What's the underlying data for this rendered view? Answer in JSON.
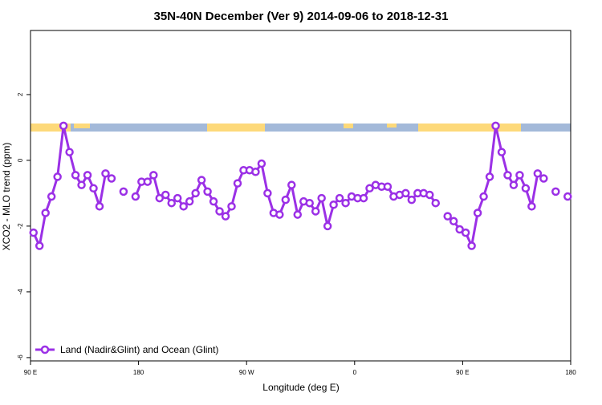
{
  "chart_data": {
    "type": "line",
    "title": "35N-40N December (Ver 9)   2014-09-06 to 2018-12-31",
    "x_label": "Longitude (deg E)",
    "y_label": "XCO2 - MLO trend (ppm)",
    "xlim": [
      90,
      540
    ],
    "ylim": [
      -6.1,
      3.95
    ],
    "xticks": [
      {
        "value": 90,
        "label": "90 E"
      },
      180,
      {
        "value": 270,
        "label": "90 W"
      },
      {
        "value": 360,
        "label": "0"
      },
      {
        "value": 450,
        "label": "90 E"
      },
      {
        "value": 540,
        "label": "180"
      }
    ],
    "yticks": [
      2,
      0,
      -2,
      -4,
      -6
    ],
    "legend": "bottomleft",
    "x": [
      92.5,
      97.5,
      102.5,
      107.5,
      112.5,
      117.5,
      122.5,
      127.5,
      132.5,
      137.5,
      142.5,
      147.5,
      152.5,
      157.5,
      162.5,
      167.5,
      172.5,
      177.5,
      182.5,
      187.5,
      192.5,
      197.5,
      202.5,
      207.5,
      212.5,
      217.5,
      222.5,
      227.5,
      232.5,
      237.5,
      242.5,
      247.5,
      252.5,
      257.5,
      262.5,
      267.5,
      272.5,
      277.5,
      282.5,
      287.5,
      292.5,
      297.5,
      302.5,
      307.5,
      312.5,
      317.5,
      322.5,
      327.5,
      332.5,
      337.5,
      342.5,
      347.5,
      352.5,
      357.5,
      362.5,
      367.5,
      372.5,
      377.5,
      382.5,
      387.5,
      392.5,
      397.5,
      402.5,
      407.5,
      412.5,
      417.5,
      422.5,
      427.5,
      432.5,
      437.5,
      442.5,
      447.5,
      452.5,
      457.5,
      462.5,
      467.5,
      472.5,
      477.5,
      482.5,
      487.5,
      492.5,
      497.5,
      502.5,
      507.5,
      512.5,
      517.5,
      522.5,
      527.5,
      532.5,
      537.5
    ],
    "series": [
      {
        "name": "Land (Nadir&Glint) and Ocean (Glint)",
        "color": "#9b30e6",
        "values": [
          -2.2,
          -2.6,
          -1.6,
          -1.1,
          -0.5,
          1.05,
          0.25,
          -0.45,
          -0.75,
          -0.45,
          -0.85,
          -1.4,
          -0.4,
          -0.55,
          null,
          -0.95,
          null,
          -1.1,
          -0.65,
          -0.65,
          -0.45,
          -1.15,
          -1.05,
          -1.3,
          -1.15,
          -1.4,
          -1.25,
          -1.0,
          -0.6,
          -0.95,
          -1.25,
          -1.55,
          -1.7,
          -1.4,
          -0.7,
          -0.3,
          -0.3,
          -0.35,
          -0.1,
          -1.0,
          -1.6,
          -1.65,
          -1.2,
          -0.75,
          -1.65,
          -1.25,
          -1.3,
          -1.55,
          -1.15,
          -2.0,
          -1.35,
          -1.15,
          -1.3,
          -1.1,
          -1.15,
          -1.15,
          -0.85,
          -0.75,
          -0.8,
          -0.8,
          -1.1,
          -1.05,
          -1.0,
          -1.2,
          -1.0,
          -1.0,
          -1.05,
          -1.3,
          null,
          -1.7,
          -1.85,
          -2.1,
          -2.2,
          -2.6,
          -1.6,
          -1.1,
          -0.5,
          1.05,
          0.25,
          -0.45,
          -0.75,
          -0.45,
          -0.85,
          -1.4,
          -0.4,
          -0.55,
          null,
          -0.95,
          null,
          -1.1
        ]
      }
    ]
  }
}
